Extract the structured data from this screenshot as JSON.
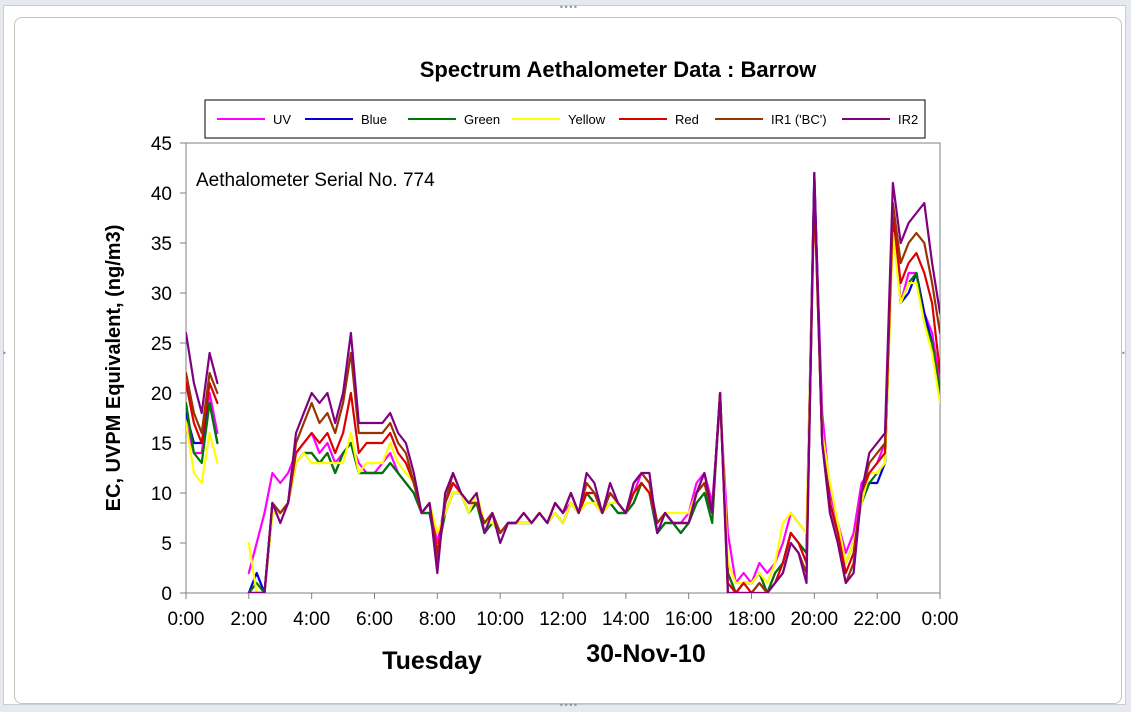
{
  "chart_data": {
    "type": "line",
    "title": "Spectrum Aethalometer Data  :  Barrow",
    "annotation": "Aethalometer  Serial No. 774",
    "ylabel": "EC, UVPM Equivalent, (ng/m3)",
    "day_label": "Tuesday",
    "date_label": "30-Nov-10",
    "ylim": [
      0,
      45
    ],
    "yticks": [
      0,
      5,
      10,
      15,
      20,
      25,
      30,
      35,
      40,
      45
    ],
    "xlim_hours": [
      0,
      24
    ],
    "xticks": [
      "0:00",
      "2:00",
      "4:00",
      "6:00",
      "8:00",
      "10:00",
      "12:00",
      "14:00",
      "16:00",
      "18:00",
      "20:00",
      "22:00",
      "0:00"
    ],
    "legend_position": "top",
    "grid": false,
    "x_hours": [
      0,
      0.25,
      0.5,
      0.75,
      1,
      1.25,
      1.5,
      1.75,
      2,
      2.25,
      2.5,
      2.75,
      3,
      3.25,
      3.5,
      3.75,
      4,
      4.25,
      4.5,
      4.75,
      5,
      5.25,
      5.5,
      5.75,
      6,
      6.25,
      6.5,
      6.75,
      7,
      7.25,
      7.5,
      7.75,
      8,
      8.25,
      8.5,
      8.75,
      9,
      9.25,
      9.5,
      9.75,
      10,
      10.25,
      10.5,
      10.75,
      11,
      11.25,
      11.5,
      11.75,
      12,
      12.25,
      12.5,
      12.75,
      13,
      13.25,
      13.5,
      13.75,
      14,
      14.25,
      14.5,
      14.75,
      15,
      15.25,
      15.5,
      15.75,
      16,
      16.25,
      16.5,
      16.75,
      17,
      17.25,
      17.5,
      17.75,
      18,
      18.25,
      18.5,
      18.75,
      19,
      19.25,
      19.5,
      19.75,
      20,
      20.25,
      20.5,
      20.75,
      21,
      21.25,
      21.5,
      21.75,
      22,
      22.25,
      22.5,
      22.75,
      23,
      23.25,
      23.5,
      23.75,
      24
    ],
    "series": [
      {
        "name": "UV",
        "color": "#ff00ff",
        "values": [
          17,
          14,
          14,
          20,
          16,
          null,
          null,
          null,
          2,
          5,
          8,
          12,
          11,
          12,
          14,
          15,
          16,
          14,
          15,
          13,
          14,
          15,
          13,
          12,
          12,
          13,
          14,
          12,
          11,
          10,
          8,
          9,
          5,
          9,
          11,
          10,
          9,
          9,
          7,
          8,
          6,
          7,
          7,
          8,
          7,
          8,
          7,
          9,
          8,
          9,
          8,
          10,
          9,
          8,
          10,
          9,
          8,
          10,
          12,
          11,
          7,
          8,
          7,
          7,
          8,
          11,
          12,
          9,
          19,
          6,
          1,
          2,
          1,
          3,
          2,
          3,
          5,
          8,
          7,
          6,
          41,
          18,
          10,
          7,
          4,
          6,
          11,
          12,
          13,
          15,
          38,
          29,
          32,
          32,
          28,
          26,
          21
        ]
      },
      {
        "name": "Blue",
        "color": "#0000dd",
        "values": [
          18,
          15,
          15,
          19,
          15,
          null,
          null,
          null,
          0,
          2,
          0,
          9,
          8,
          9,
          13,
          14,
          14,
          13,
          14,
          12,
          14,
          15,
          12,
          12,
          12,
          12,
          13,
          12,
          11,
          10,
          8,
          8,
          4,
          8,
          10,
          10,
          8,
          9,
          6,
          7,
          6,
          7,
          7,
          7,
          7,
          8,
          7,
          8,
          7,
          9,
          8,
          10,
          9,
          8,
          9,
          8,
          8,
          9,
          11,
          10,
          6,
          7,
          7,
          6,
          7,
          9,
          10,
          8,
          20,
          2,
          0,
          1,
          1,
          2,
          0,
          2,
          3,
          6,
          5,
          4,
          42,
          16,
          9,
          6,
          3,
          5,
          9,
          11,
          11,
          13,
          37,
          29,
          30,
          32,
          28,
          25,
          20
        ]
      },
      {
        "name": "Green",
        "color": "#007700",
        "values": [
          19,
          14,
          13,
          19,
          15,
          null,
          null,
          null,
          0,
          1,
          0,
          8,
          8,
          9,
          13,
          14,
          14,
          13,
          14,
          12,
          14,
          15,
          12,
          12,
          12,
          12,
          13,
          12,
          11,
          10,
          8,
          8,
          4,
          8,
          10,
          10,
          8,
          9,
          6,
          7,
          6,
          7,
          7,
          7,
          7,
          8,
          7,
          8,
          7,
          9,
          8,
          10,
          9,
          8,
          9,
          8,
          8,
          9,
          11,
          10,
          6,
          7,
          7,
          6,
          7,
          9,
          10,
          7,
          20,
          2,
          0,
          1,
          1,
          2,
          0,
          2,
          3,
          6,
          5,
          4,
          41,
          15,
          9,
          6,
          3,
          5,
          9,
          11,
          12,
          13,
          37,
          29,
          31,
          32,
          27,
          25,
          20
        ]
      },
      {
        "name": "Yellow",
        "color": "#ffff00",
        "values": [
          17,
          12,
          11,
          16,
          13,
          null,
          null,
          null,
          5,
          0,
          0,
          8,
          8,
          9,
          13,
          14,
          13,
          13,
          13,
          13,
          13,
          16,
          12,
          13,
          13,
          13,
          15,
          13,
          12,
          11,
          8,
          9,
          6,
          8,
          10,
          10,
          8,
          10,
          7,
          7,
          6,
          7,
          7,
          7,
          7,
          8,
          7,
          8,
          7,
          9,
          8,
          9,
          9,
          8,
          9,
          9,
          8,
          10,
          11,
          10,
          7,
          8,
          8,
          8,
          8,
          10,
          11,
          8,
          20,
          3,
          1,
          1,
          1,
          2,
          1,
          3,
          7,
          8,
          7,
          6,
          40,
          16,
          11,
          7,
          3,
          5,
          9,
          12,
          12,
          13,
          36,
          29,
          31,
          31,
          27,
          24,
          19
        ]
      },
      {
        "name": "Red",
        "color": "#dd0000",
        "values": [
          21,
          17,
          15,
          21,
          19,
          null,
          null,
          null,
          0,
          0,
          0,
          9,
          8,
          9,
          14,
          15,
          16,
          15,
          16,
          14,
          16,
          20,
          14,
          15,
          15,
          15,
          16,
          14,
          13,
          11,
          8,
          9,
          4,
          9,
          11,
          10,
          9,
          9,
          7,
          8,
          6,
          7,
          7,
          8,
          7,
          8,
          7,
          9,
          8,
          10,
          8,
          10,
          10,
          8,
          10,
          9,
          8,
          10,
          11,
          10,
          7,
          8,
          7,
          7,
          7,
          10,
          11,
          8,
          20,
          1,
          0,
          1,
          0,
          1,
          0,
          1,
          3,
          6,
          5,
          3,
          40,
          15,
          9,
          6,
          2,
          4,
          10,
          12,
          13,
          14,
          38,
          31,
          33,
          34,
          32,
          29,
          22
        ]
      },
      {
        "name": "IR1 ('BC')",
        "color": "#993300",
        "values": [
          22,
          18,
          16,
          22,
          20,
          null,
          null,
          null,
          0,
          0,
          0,
          9,
          8,
          9,
          15,
          17,
          19,
          17,
          18,
          16,
          19,
          24,
          16,
          16,
          16,
          16,
          17,
          15,
          14,
          11,
          8,
          9,
          3,
          9,
          12,
          10,
          9,
          9,
          7,
          8,
          6,
          7,
          7,
          8,
          7,
          8,
          7,
          9,
          8,
          10,
          8,
          11,
          10,
          8,
          10,
          9,
          8,
          11,
          12,
          11,
          7,
          8,
          7,
          7,
          7,
          10,
          11,
          8,
          20,
          0,
          0,
          0,
          0,
          1,
          0,
          1,
          2,
          5,
          4,
          2,
          41,
          15,
          8,
          5,
          1,
          3,
          10,
          13,
          14,
          15,
          39,
          33,
          35,
          36,
          35,
          31,
          26
        ]
      },
      {
        "name": "IR2",
        "color": "#800080",
        "values": [
          26,
          21,
          18,
          24,
          21,
          null,
          null,
          null,
          0,
          0,
          0,
          9,
          7,
          9,
          16,
          18,
          20,
          19,
          20,
          17,
          20,
          26,
          17,
          17,
          17,
          17,
          18,
          16,
          15,
          12,
          8,
          9,
          2,
          10,
          12,
          10,
          9,
          10,
          6,
          8,
          5,
          7,
          7,
          8,
          7,
          8,
          7,
          9,
          8,
          10,
          8,
          12,
          11,
          8,
          11,
          9,
          8,
          11,
          12,
          12,
          6,
          8,
          7,
          7,
          7,
          10,
          12,
          8,
          20,
          0,
          0,
          0,
          0,
          0,
          0,
          1,
          2,
          5,
          4,
          1,
          42,
          15,
          8,
          5,
          1,
          2,
          10,
          14,
          15,
          16,
          41,
          35,
          37,
          38,
          39,
          33,
          28
        ]
      }
    ]
  }
}
